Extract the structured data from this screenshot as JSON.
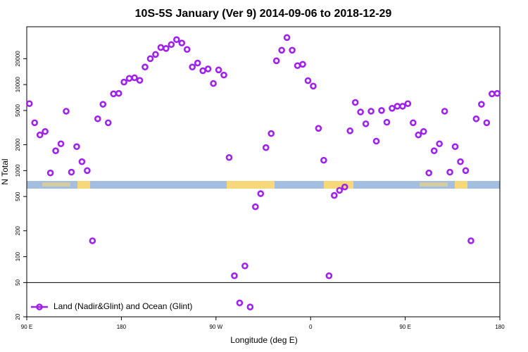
{
  "chart_data": {
    "type": "scatter",
    "title": "10S-5S January (Ver 9)   2014-09-06 to 2018-12-29",
    "x_label": "Longitude (deg E)",
    "y_label": "N Total",
    "y_scale": "log",
    "legend": "lower left",
    "reference_line": 50,
    "xlim": [
      90,
      540
    ],
    "xticks": [
      {
        "value": 90,
        "label": "90 E"
      },
      180,
      {
        "value": 270,
        "label": "90 W"
      },
      {
        "value": 360,
        "label": "0"
      },
      {
        "value": 450,
        "label": "90 E"
      },
      {
        "value": 540,
        "label": "180"
      }
    ],
    "ylim": [
      20,
      47000
    ],
    "yticks": [
      20,
      50,
      100,
      200,
      500,
      1000,
      2000,
      5000,
      10000,
      20000
    ],
    "series": [
      {
        "name": "Land (Nadir&Glint) and Ocean (Glint)",
        "color": "#a020f0",
        "x": [
          92.5,
          97.5,
          102.5,
          107.5,
          112.5,
          117.5,
          122.5,
          127.5,
          132.5,
          137.5,
          142.5,
          147.5,
          152.5,
          157.5,
          162.5,
          167.5,
          172.5,
          177.5,
          182.5,
          187.5,
          192.5,
          197.5,
          202.5,
          207.5,
          212.5,
          217.5,
          222.5,
          227.5,
          232.5,
          237.5,
          242.5,
          247.5,
          252.5,
          257.5,
          262.5,
          267.5,
          272.5,
          277.5,
          282.5,
          287.5,
          292.5,
          297.5,
          302.5,
          307.5,
          312.5,
          317.5,
          322.5,
          327.5,
          332.5,
          337.5,
          342.5,
          347.5,
          352.5,
          357.5,
          362.5,
          367.5,
          372.5,
          377.5,
          382.5,
          387.5,
          392.5,
          397.5,
          402.5,
          407.5,
          412.5,
          417.5,
          422.5,
          427.5,
          432.5,
          437.5,
          442.5,
          447.5,
          452.5,
          457.5,
          462.5,
          467.5,
          472.5,
          477.5,
          482.5,
          487.5,
          492.5,
          497.5,
          502.5,
          507.5,
          512.5,
          517.5,
          522.5,
          527.5,
          532.5,
          537.5
        ],
        "values": [
          6000,
          3600,
          2600,
          2850,
          940,
          1700,
          2050,
          4900,
          960,
          1900,
          1270,
          1000,
          153,
          4000,
          5900,
          3600,
          7800,
          7900,
          10700,
          11800,
          12000,
          11200,
          16000,
          20000,
          22400,
          27000,
          26300,
          29200,
          33300,
          30400,
          25600,
          16000,
          17800,
          14500,
          15200,
          10300,
          14800,
          12900,
          1420,
          60,
          29,
          78,
          26,
          380,
          540,
          1850,
          2700,
          18900,
          25100,
          35200,
          25100,
          16600,
          17200,
          11100,
          9600,
          3100,
          1320,
          60,
          515,
          590,
          645,
          2900,
          6200,
          4800,
          3500,
          4900,
          2200,
          5000,
          3650,
          5300,
          5600,
          5600,
          6000,
          3600,
          2600,
          2850,
          940,
          1700,
          2050,
          4900,
          960,
          1900,
          1270,
          1000,
          153,
          4000,
          5900,
          3600,
          7800,
          7900
        ]
      }
    ]
  }
}
